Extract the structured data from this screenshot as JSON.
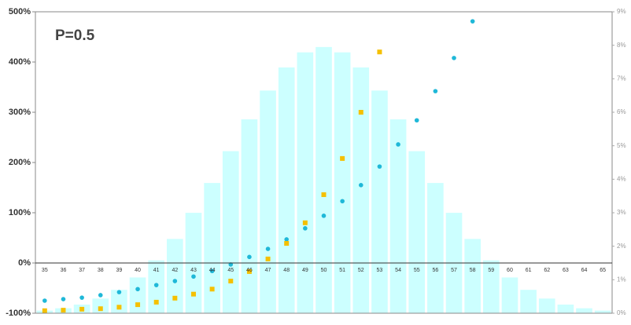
{
  "chart_data": {
    "type": "bar",
    "annotation": "P=0.5",
    "categories": [
      "35",
      "36",
      "37",
      "38",
      "39",
      "40",
      "41",
      "42",
      "43",
      "44",
      "45",
      "46",
      "47",
      "48",
      "49",
      "50",
      "51",
      "52",
      "53",
      "54",
      "55",
      "56",
      "57",
      "58",
      "59",
      "60",
      "61",
      "62",
      "63",
      "64",
      "65"
    ],
    "series": [
      {
        "type": "bar",
        "axis": "y2",
        "color": "#ccffff",
        "values": [
          0.09,
          0.16,
          0.27,
          0.45,
          0.71,
          1.08,
          1.59,
          2.23,
          3.01,
          3.9,
          4.85,
          5.8,
          6.66,
          7.35,
          7.8,
          7.96,
          7.8,
          7.35,
          6.66,
          5.8,
          4.85,
          3.9,
          3.01,
          2.23,
          1.59,
          1.08,
          0.71,
          0.45,
          0.27,
          0.16,
          0.09
        ]
      },
      {
        "type": "scatter",
        "color": "#1fb8d8",
        "values": [
          -75,
          -72,
          -69,
          -64,
          -58,
          -52,
          -44,
          -36,
          -27,
          -16,
          -3,
          12,
          28,
          47,
          69,
          94,
          123,
          155,
          192,
          236,
          284,
          342,
          408,
          481,
          null,
          null,
          null,
          null,
          null,
          null,
          null
        ]
      },
      {
        "type": "scatter",
        "color": "#f5c000",
        "values": [
          -95,
          -94,
          -92,
          -91,
          -88,
          -83,
          -78,
          -70,
          -62,
          -52,
          -36,
          -17,
          8,
          39,
          80,
          136,
          208,
          300,
          420,
          null,
          null,
          null,
          null,
          null,
          null,
          null,
          null,
          null,
          null,
          null,
          null
        ]
      }
    ],
    "ylim": [
      -100,
      500
    ],
    "yticks": [
      {
        "value": -100,
        "label": "-100%"
      },
      {
        "value": 0,
        "label": "0%"
      },
      {
        "value": 100,
        "label": "100%"
      },
      {
        "value": 200,
        "label": "200%"
      },
      {
        "value": 300,
        "label": "300%"
      },
      {
        "value": 400,
        "label": "400%"
      },
      {
        "value": 500,
        "label": "500%"
      }
    ],
    "y2lim": [
      0,
      9
    ],
    "y2ticks": [
      {
        "value": 0,
        "label": "0%"
      },
      {
        "value": 1,
        "label": "1%"
      },
      {
        "value": 2,
        "label": "2%"
      },
      {
        "value": 3,
        "label": "3%"
      },
      {
        "value": 4,
        "label": "4%"
      },
      {
        "value": 5,
        "label": "5%"
      },
      {
        "value": 6,
        "label": "6%"
      },
      {
        "value": 7,
        "label": "7%"
      },
      {
        "value": 8,
        "label": "8%"
      },
      {
        "value": 9,
        "label": "9%"
      }
    ]
  }
}
